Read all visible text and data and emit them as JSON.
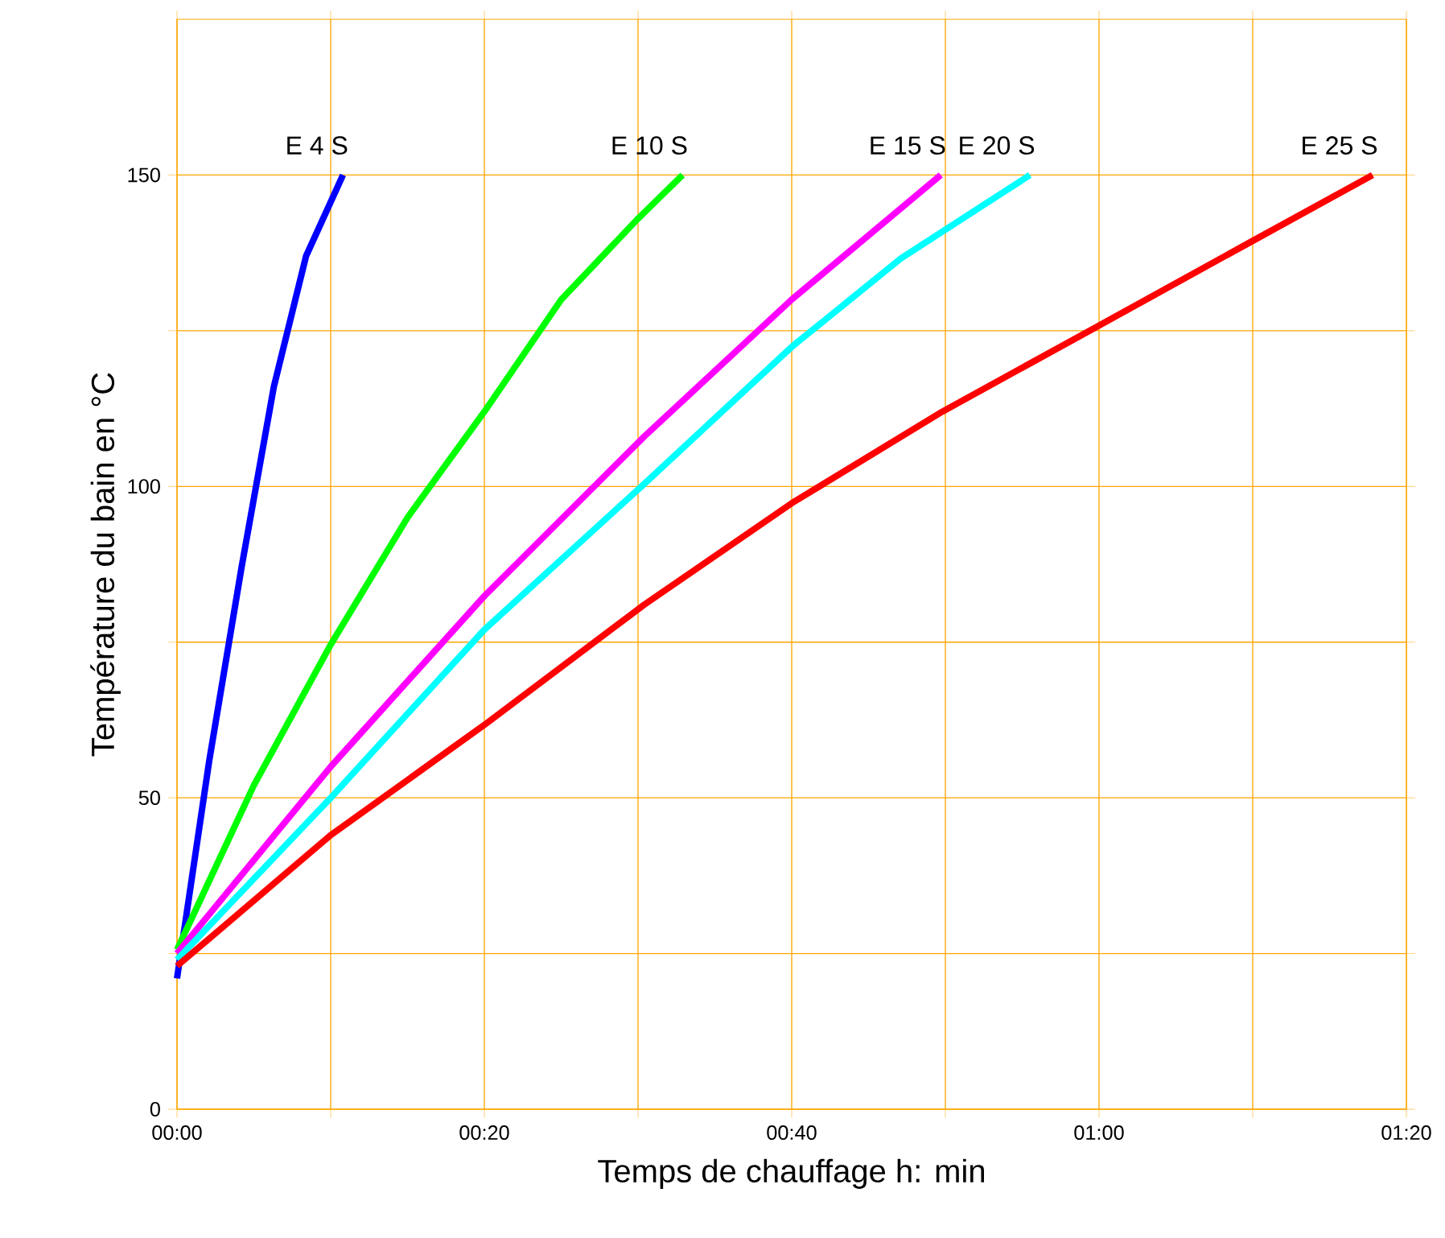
{
  "chart_data": {
    "type": "line",
    "xlabel": "Temps de chauffage h: min",
    "ylabel": "Température du bain en °C",
    "xlim": [
      0,
      80
    ],
    "ylim": [
      0,
      175
    ],
    "xticks": [
      {
        "value": 0,
        "label": "00:00"
      },
      {
        "value": 10,
        "label": null
      },
      {
        "value": 20,
        "label": "00:20"
      },
      {
        "value": 30,
        "label": null
      },
      {
        "value": 40,
        "label": "00:40"
      },
      {
        "value": 50,
        "label": null
      },
      {
        "value": 60,
        "label": "01:00"
      },
      {
        "value": 70,
        "label": null
      },
      {
        "value": 80,
        "label": "01:20"
      }
    ],
    "yticks": [
      0,
      {
        "value": 25,
        "label": null
      },
      50,
      {
        "value": 75,
        "label": null
      },
      100,
      {
        "value": 125,
        "label": null
      },
      150
    ],
    "grid": true,
    "legend": false,
    "marker": "none",
    "line_style": "solid",
    "series": [
      {
        "name": "E 4 S",
        "color": "#0000ff",
        "x": [
          0,
          2.1,
          4.2,
          6.3,
          8.4,
          10.8
        ],
        "values": [
          21,
          56,
          87,
          116,
          137,
          150
        ]
      },
      {
        "name": "E 10 S",
        "color": "#00ff00",
        "x": [
          0,
          5,
          10,
          15,
          20,
          25,
          30,
          32.9
        ],
        "values": [
          25.6,
          52,
          74.6,
          95,
          112,
          130,
          143,
          150
        ]
      },
      {
        "name": "E 15 S",
        "color": "#ff00ff",
        "x": [
          0,
          10,
          20,
          30.4,
          40,
          49.7
        ],
        "values": [
          25,
          55,
          82.4,
          108,
          130,
          150
        ]
      },
      {
        "name": "E 20 S",
        "color": "#00ffff",
        "x": [
          0,
          10,
          20,
          30.4,
          40,
          47.1,
          55.5
        ],
        "values": [
          24,
          50,
          77,
          100.4,
          122.4,
          136.6,
          150
        ]
      },
      {
        "name": "E 25 S",
        "color": "#ff0000",
        "x": [
          0,
          10,
          20,
          30.4,
          40,
          49.8,
          59.9,
          70.2,
          77.8
        ],
        "values": [
          23,
          44,
          61.7,
          81,
          97.3,
          112,
          125.7,
          139.7,
          150
        ]
      }
    ]
  }
}
